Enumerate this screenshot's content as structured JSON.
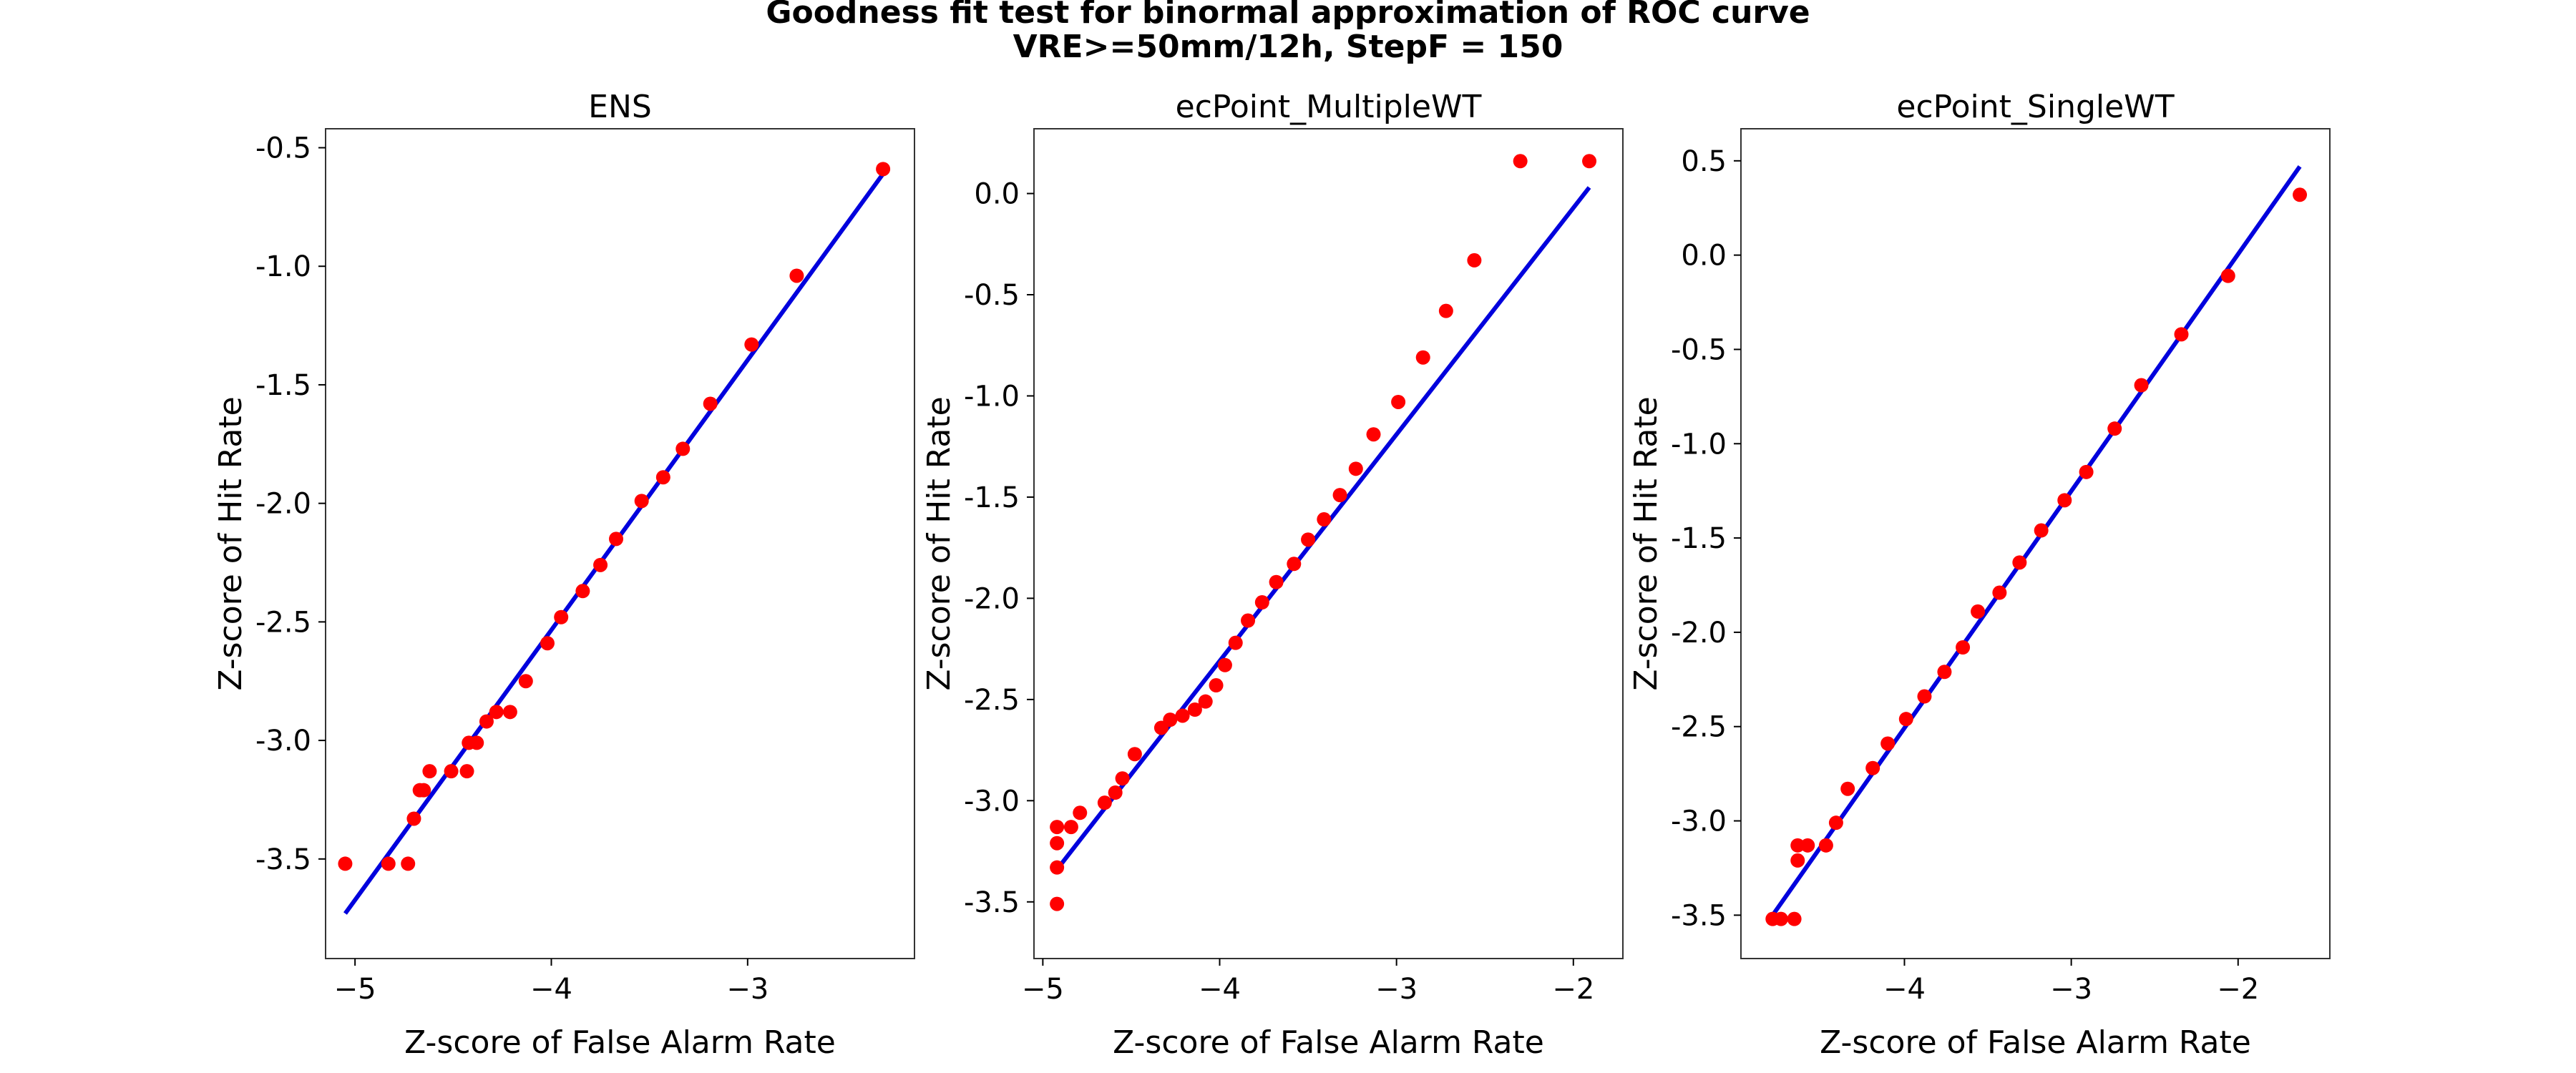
{
  "figure": {
    "title_line1": "Goodness fit test for binormal approximation of ROC curve",
    "title_line2": "VRE>=50mm/12h, StepF = 150"
  },
  "chart_data": [
    {
      "type": "scatter",
      "title": "ENS",
      "xlabel": "Z-score of False Alarm Rate",
      "ylabel": "Z-score of Hit Rate",
      "xlim": [
        -5.15,
        -2.15
      ],
      "ylim": [
        -3.92,
        -0.42
      ],
      "xticks": [
        -5,
        -4,
        -3
      ],
      "xtick_labels": [
        "−5",
        "−4",
        "−3"
      ],
      "yticks": [
        -3.5,
        -3.0,
        -2.5,
        -2.0,
        -1.5,
        -1.0,
        -0.5
      ],
      "ytick_labels": [
        "-3.5",
        "-3.0",
        "-2.5",
        "-2.0",
        "-1.5",
        "-1.0",
        "-0.5"
      ],
      "grid": false,
      "series": [
        {
          "kind": "points",
          "color": "#ff0000",
          "x": [
            -5.05,
            -4.83,
            -4.73,
            -4.7,
            -4.67,
            -4.65,
            -4.62,
            -4.51,
            -4.43,
            -4.42,
            -4.38,
            -4.33,
            -4.28,
            -4.21,
            -4.13,
            -4.02,
            -3.95,
            -3.84,
            -3.75,
            -3.67,
            -3.54,
            -3.43,
            -3.33,
            -3.19,
            -2.98,
            -2.75,
            -2.31
          ],
          "y": [
            -3.52,
            -3.52,
            -3.52,
            -3.33,
            -3.21,
            -3.21,
            -3.13,
            -3.13,
            -3.13,
            -3.01,
            -3.01,
            -2.92,
            -2.88,
            -2.88,
            -2.75,
            -2.59,
            -2.48,
            -2.37,
            -2.26,
            -2.15,
            -1.99,
            -1.89,
            -1.77,
            -1.58,
            -1.33,
            -1.04,
            -0.59
          ]
        },
        {
          "kind": "fit_line",
          "color": "#0000dd",
          "x": [
            -5.05,
            -2.31
          ],
          "y": [
            -3.73,
            -0.61
          ]
        }
      ]
    },
    {
      "type": "scatter",
      "title": "ecPoint_MultipleWT",
      "xlabel": "Z-score of False Alarm Rate",
      "ylabel": "Z-score of Hit Rate",
      "xlim": [
        -5.05,
        -1.72
      ],
      "ylim": [
        -3.78,
        0.32
      ],
      "xticks": [
        -5,
        -4,
        -3,
        -2
      ],
      "xtick_labels": [
        "−5",
        "−4",
        "−3",
        "−2"
      ],
      "yticks": [
        -3.5,
        -3.0,
        -2.5,
        -2.0,
        -1.5,
        -1.0,
        -0.5,
        0.0
      ],
      "ytick_labels": [
        "-3.5",
        "-3.0",
        "-2.5",
        "-2.0",
        "-1.5",
        "-1.0",
        "-0.5",
        "0.0"
      ],
      "grid": false,
      "series": [
        {
          "kind": "points",
          "color": "#ff0000",
          "x": [
            -4.92,
            -4.92,
            -4.92,
            -4.92,
            -4.84,
            -4.79,
            -4.65,
            -4.59,
            -4.55,
            -4.48,
            -4.33,
            -4.28,
            -4.21,
            -4.14,
            -4.08,
            -4.02,
            -3.97,
            -3.91,
            -3.84,
            -3.76,
            -3.68,
            -3.58,
            -3.5,
            -3.41,
            -3.32,
            -3.23,
            -3.13,
            -2.99,
            -2.85,
            -2.72,
            -2.56,
            -2.3,
            -1.91
          ],
          "y": [
            -3.51,
            -3.33,
            -3.21,
            -3.13,
            -3.13,
            -3.06,
            -3.01,
            -2.96,
            -2.89,
            -2.77,
            -2.64,
            -2.6,
            -2.58,
            -2.55,
            -2.51,
            -2.43,
            -2.33,
            -2.22,
            -2.11,
            -2.02,
            -1.92,
            -1.83,
            -1.71,
            -1.61,
            -1.49,
            -1.36,
            -1.19,
            -1.03,
            -0.81,
            -0.58,
            -0.33,
            0.16,
            0.16
          ]
        },
        {
          "kind": "fit_line",
          "color": "#0000dd",
          "x": [
            -4.92,
            -1.91
          ],
          "y": [
            -3.34,
            0.03
          ]
        }
      ]
    },
    {
      "type": "scatter",
      "title": "ecPoint_SingleWT",
      "xlabel": "Z-score of False Alarm Rate",
      "ylabel": "Z-score of Hit Rate",
      "xlim": [
        -4.98,
        -1.45
      ],
      "ylim": [
        -3.73,
        0.67
      ],
      "xticks": [
        -4,
        -3,
        -2
      ],
      "xtick_labels": [
        "−4",
        "−3",
        "−2"
      ],
      "yticks": [
        -3.5,
        -3.0,
        -2.5,
        -2.0,
        -1.5,
        -1.0,
        -0.5,
        0.0,
        0.5
      ],
      "ytick_labels": [
        "-3.5",
        "-3.0",
        "-2.5",
        "-2.0",
        "-1.5",
        "-1.0",
        "-0.5",
        "0.0",
        "0.5"
      ],
      "grid": false,
      "series": [
        {
          "kind": "points",
          "color": "#ff0000",
          "x": [
            -4.79,
            -4.74,
            -4.66,
            -4.64,
            -4.64,
            -4.58,
            -4.47,
            -4.41,
            -4.34,
            -4.19,
            -4.1,
            -3.99,
            -3.88,
            -3.76,
            -3.65,
            -3.56,
            -3.43,
            -3.31,
            -3.18,
            -3.04,
            -2.91,
            -2.74,
            -2.58,
            -2.34,
            -2.06,
            -1.63
          ],
          "y": [
            -3.52,
            -3.52,
            -3.52,
            -3.21,
            -3.13,
            -3.13,
            -3.13,
            -3.01,
            -2.83,
            -2.72,
            -2.59,
            -2.46,
            -2.34,
            -2.21,
            -2.08,
            -1.89,
            -1.79,
            -1.63,
            -1.46,
            -1.3,
            -1.15,
            -0.92,
            -0.69,
            -0.42,
            -0.11,
            0.32
          ]
        },
        {
          "kind": "fit_line",
          "color": "#0000dd",
          "x": [
            -4.79,
            -1.63
          ],
          "y": [
            -3.5,
            0.47
          ]
        }
      ]
    }
  ]
}
